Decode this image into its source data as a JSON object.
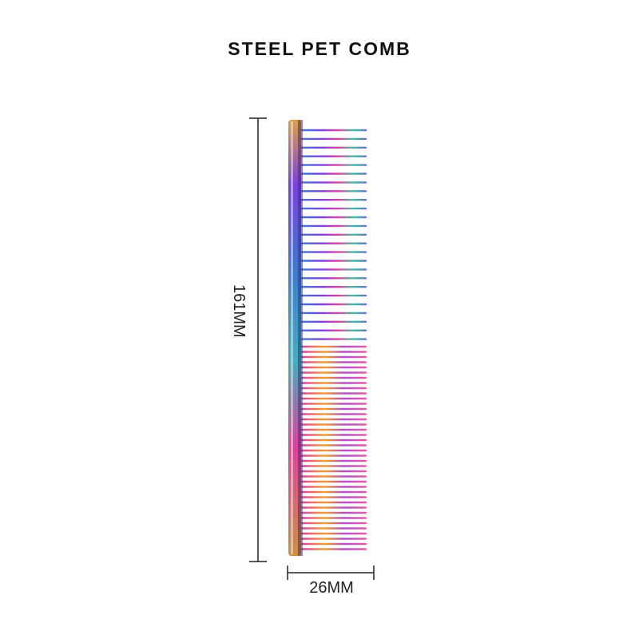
{
  "product": {
    "title": "STEEL PET COMB",
    "image_icon": "iridescent-steel-comb"
  },
  "dimensions": {
    "height_label": "161MM",
    "width_label": "26MM"
  },
  "colors": {
    "text": "#111111",
    "dimension_lines": "#222222",
    "comb_gradient": [
      "#3a7bd5",
      "#7b3fe4",
      "#e040a0",
      "#f0a030",
      "#40c0a0",
      "#3a7bd5"
    ]
  }
}
